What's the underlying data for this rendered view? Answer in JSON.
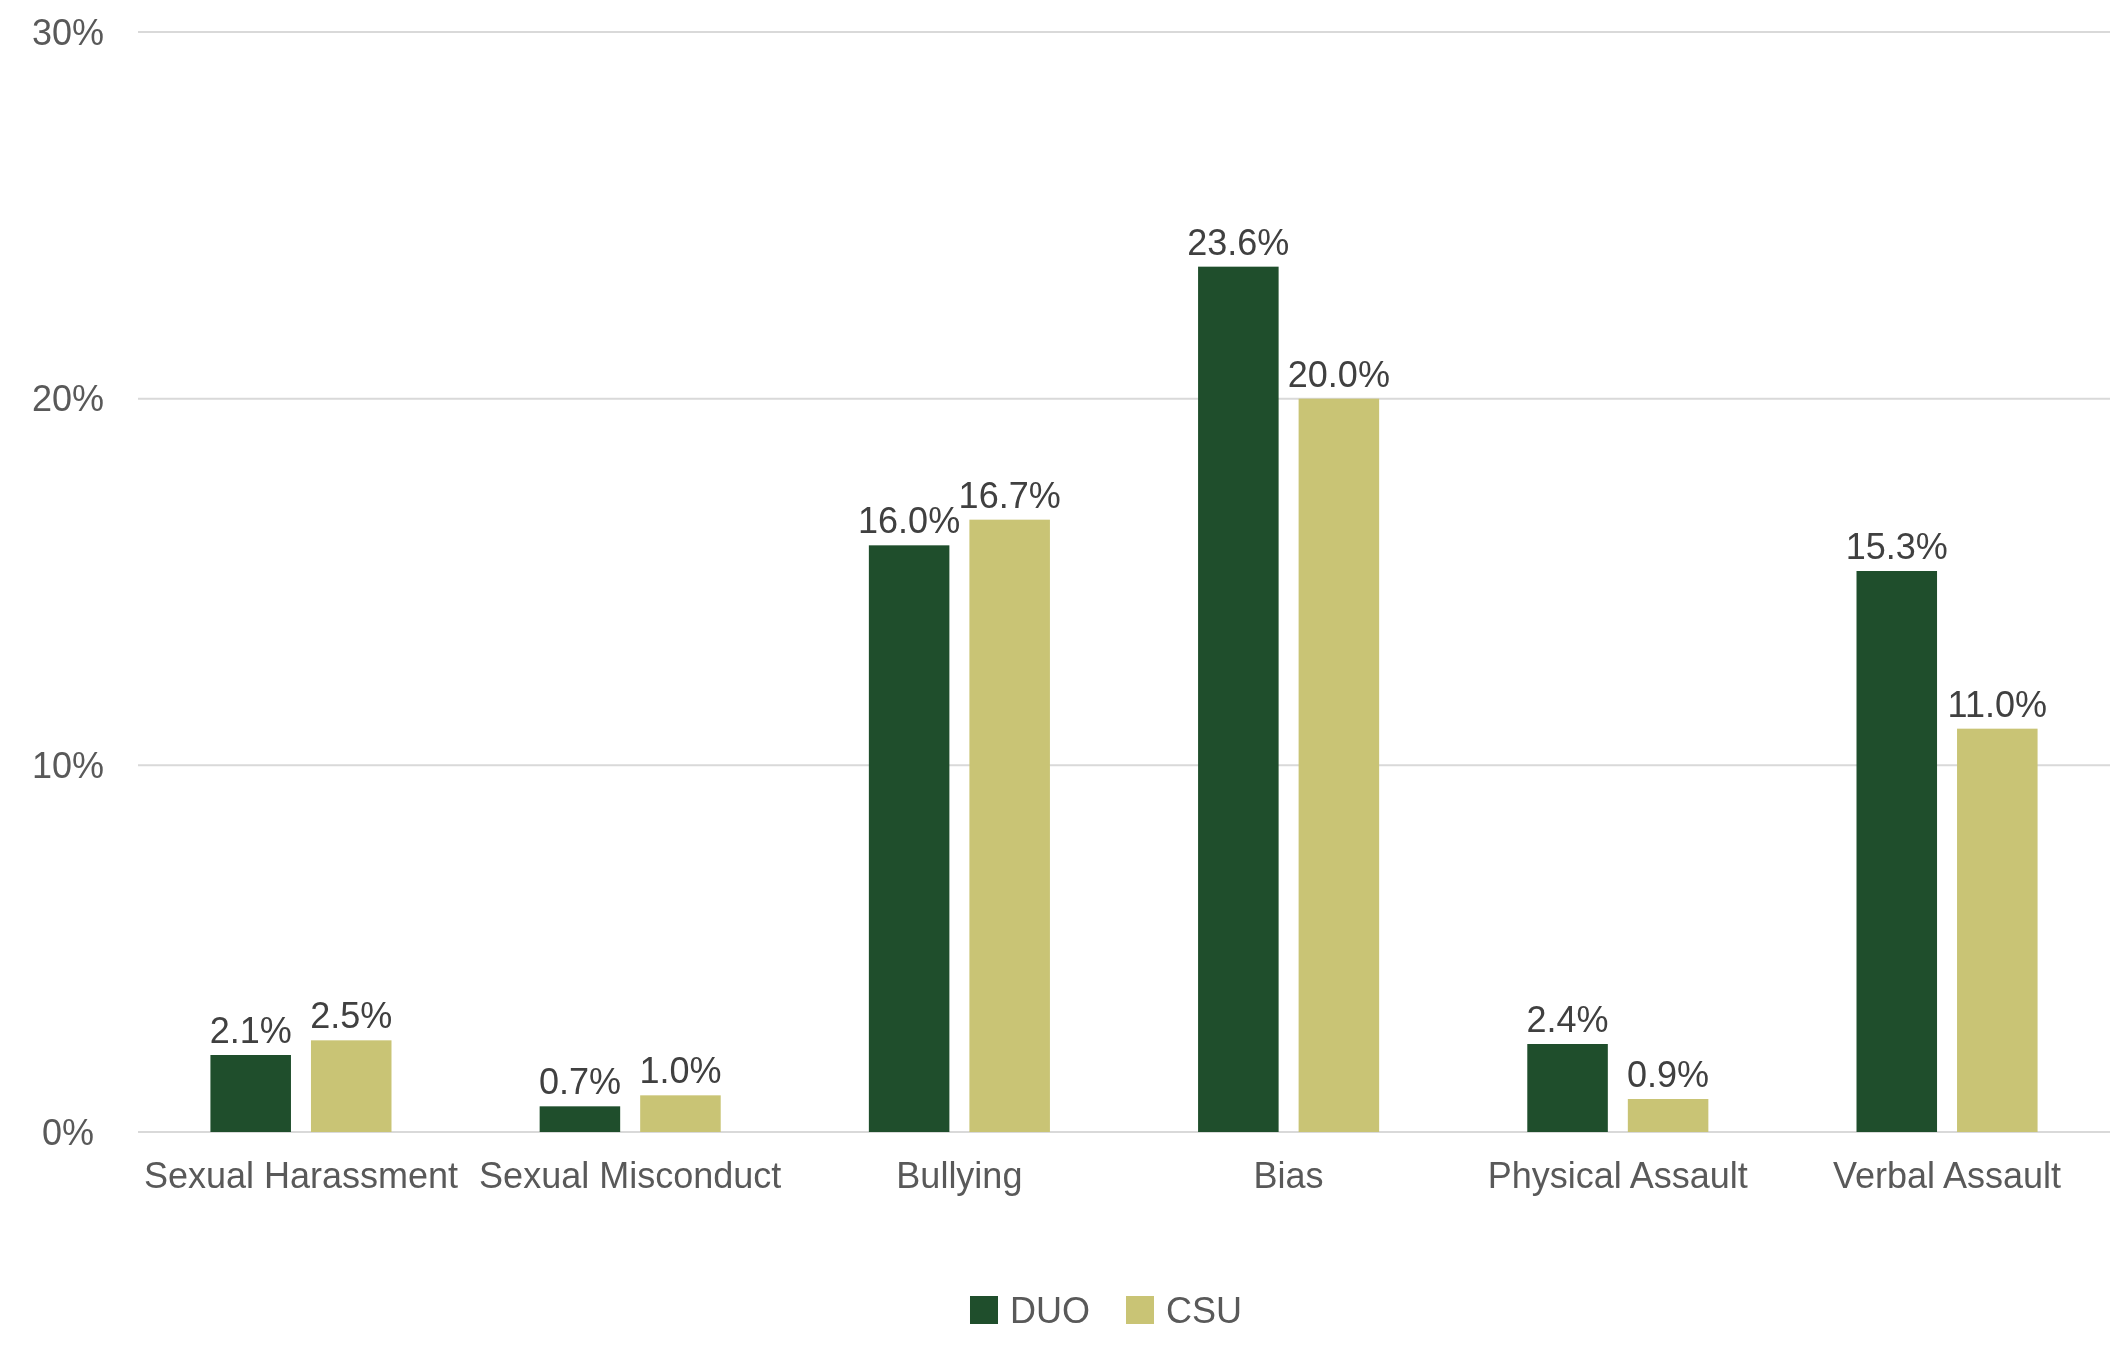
{
  "chart_data": {
    "type": "bar",
    "categories": [
      "Sexual Harassment",
      "Sexual Misconduct",
      "Bullying",
      "Bias",
      "Physical Assault",
      "Verbal Assault"
    ],
    "series": [
      {
        "name": "DUO",
        "color": "#1f4e2c",
        "values": [
          2.1,
          0.7,
          16.0,
          23.6,
          2.4,
          15.3
        ],
        "value_labels": [
          "2.1%",
          "0.7%",
          "16.0%",
          "23.6%",
          "2.4%",
          "15.3%"
        ]
      },
      {
        "name": "CSU",
        "color": "#c9c475",
        "values": [
          2.5,
          1.0,
          16.7,
          20.0,
          0.9,
          11.0
        ],
        "value_labels": [
          "2.5%",
          "1.0%",
          "16.7%",
          "20.0%",
          "0.9%",
          "11.0%"
        ]
      }
    ],
    "ylim": [
      0,
      30
    ],
    "yticks": [
      {
        "value": 0,
        "label": "0%"
      },
      {
        "value": 10,
        "label": "10%"
      },
      {
        "value": 20,
        "label": "20%"
      },
      {
        "value": 30,
        "label": "30%"
      }
    ],
    "grid": "y",
    "legend": "bottom"
  }
}
